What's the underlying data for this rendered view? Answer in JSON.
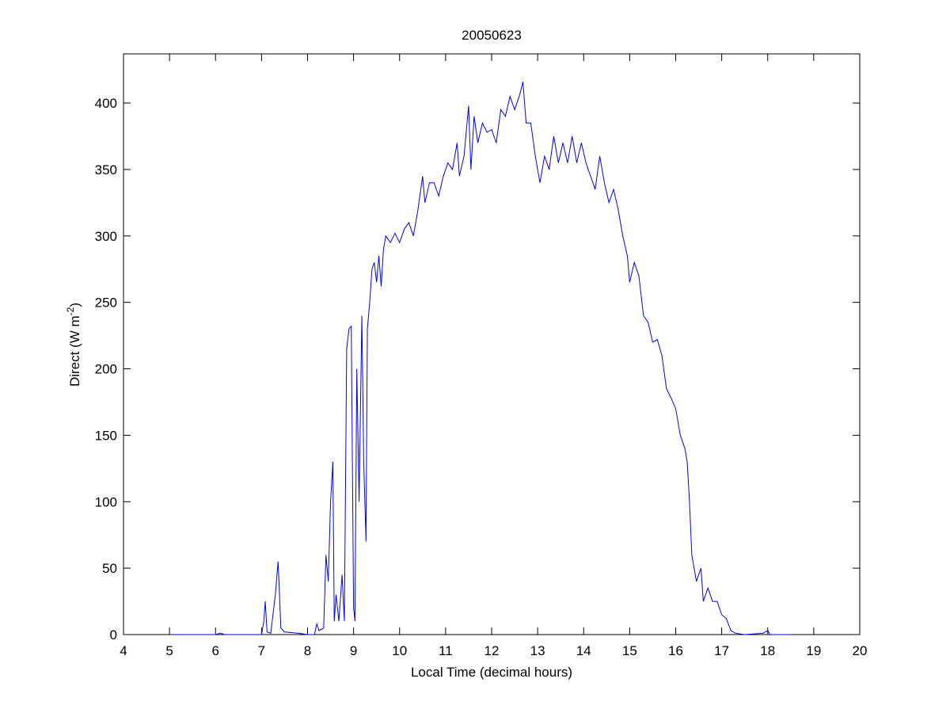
{
  "chart_data": {
    "type": "line",
    "title": "20050623",
    "xlabel": "Local Time (decimal hours)",
    "ylabel_parts": [
      "Direct (W m",
      "-2",
      ")"
    ],
    "x": [
      5.05,
      6.0,
      6.1,
      6.2,
      7.0,
      7.05,
      7.08,
      7.12,
      7.2,
      7.3,
      7.36,
      7.42,
      7.5,
      7.8,
      8.0,
      8.15,
      8.2,
      8.25,
      8.35,
      8.4,
      8.45,
      8.5,
      8.55,
      8.58,
      8.62,
      8.68,
      8.75,
      8.8,
      8.85,
      8.9,
      8.95,
      9.0,
      9.03,
      9.07,
      9.12,
      9.18,
      9.22,
      9.27,
      9.3,
      9.35,
      9.4,
      9.45,
      9.5,
      9.55,
      9.6,
      9.65,
      9.7,
      9.8,
      9.9,
      10.0,
      10.1,
      10.2,
      10.3,
      10.4,
      10.5,
      10.55,
      10.65,
      10.75,
      10.85,
      10.95,
      11.05,
      11.15,
      11.25,
      11.3,
      11.4,
      11.5,
      11.55,
      11.62,
      11.7,
      11.8,
      11.9,
      12.0,
      12.1,
      12.2,
      12.3,
      12.4,
      12.5,
      12.6,
      12.68,
      12.75,
      12.85,
      12.95,
      13.05,
      13.15,
      13.25,
      13.35,
      13.45,
      13.55,
      13.65,
      13.75,
      13.85,
      13.95,
      14.05,
      14.15,
      14.25,
      14.35,
      14.45,
      14.55,
      14.65,
      14.75,
      14.85,
      14.95,
      15.0,
      15.1,
      15.2,
      15.3,
      15.4,
      15.5,
      15.6,
      15.7,
      15.8,
      15.9,
      16.0,
      16.1,
      16.2,
      16.25,
      16.3,
      16.35,
      16.45,
      16.55,
      16.6,
      16.7,
      16.8,
      16.9,
      17.0,
      17.1,
      17.2,
      17.3,
      17.5,
      17.9,
      18.0,
      18.05,
      18.5
    ],
    "series": [
      {
        "name": "Direct",
        "color": "#0000ff",
        "values": [
          0,
          0,
          1,
          0,
          0,
          10,
          25,
          2,
          1,
          30,
          55,
          5,
          2,
          1,
          0,
          0,
          8,
          3,
          5,
          60,
          40,
          100,
          130,
          10,
          30,
          10,
          45,
          10,
          215,
          230,
          232,
          20,
          10,
          200,
          100,
          240,
          130,
          70,
          230,
          250,
          275,
          280,
          265,
          285,
          262,
          290,
          300,
          295,
          302,
          295,
          305,
          310,
          300,
          320,
          345,
          325,
          340,
          340,
          330,
          345,
          355,
          350,
          370,
          345,
          360,
          398,
          350,
          390,
          370,
          385,
          378,
          380,
          370,
          395,
          390,
          405,
          395,
          405,
          416,
          385,
          385,
          360,
          340,
          360,
          350,
          375,
          355,
          370,
          355,
          375,
          355,
          370,
          355,
          345,
          335,
          360,
          340,
          325,
          335,
          320,
          300,
          285,
          265,
          280,
          270,
          240,
          235,
          220,
          222,
          210,
          185,
          178,
          170,
          150,
          140,
          130,
          100,
          60,
          40,
          50,
          25,
          35,
          25,
          25,
          15,
          12,
          3,
          1,
          0,
          1,
          3,
          0,
          0
        ]
      }
    ],
    "xlim": [
      4,
      20
    ],
    "xticks": [
      4,
      5,
      6,
      7,
      8,
      9,
      10,
      11,
      12,
      13,
      14,
      15,
      16,
      17,
      18,
      19,
      20
    ],
    "ylim": [
      0,
      437
    ],
    "yticks": [
      0,
      50,
      100,
      150,
      200,
      250,
      300,
      350,
      400
    ],
    "grid": false
  }
}
